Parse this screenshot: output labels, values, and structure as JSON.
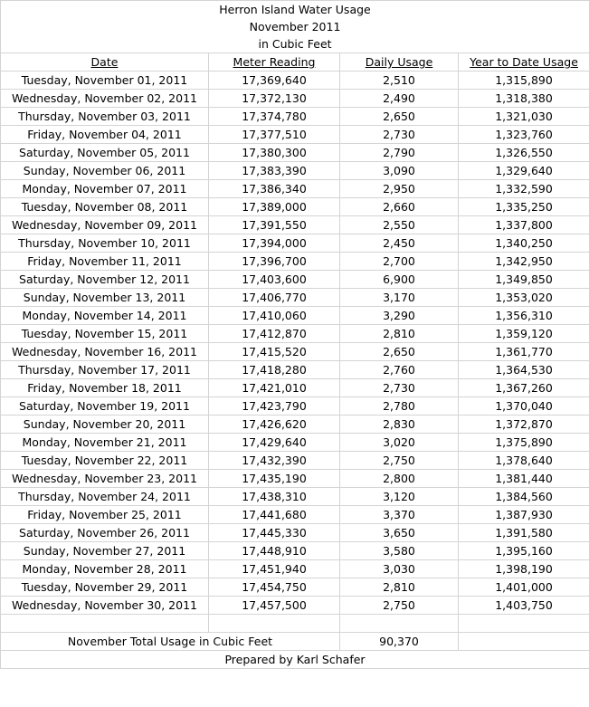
{
  "title": {
    "line1": "Herron Island Water Usage",
    "line2": "November 2011",
    "line3": "in Cubic Feet"
  },
  "headers": {
    "date": "Date",
    "meter": "Meter Reading",
    "daily": "Daily Usage",
    "ytd": "Year to Date Usage"
  },
  "rows": [
    {
      "date": "Tuesday, November 01, 2011",
      "meter": "17,369,640",
      "daily": "2,510",
      "ytd": "1,315,890"
    },
    {
      "date": "Wednesday, November 02, 2011",
      "meter": "17,372,130",
      "daily": "2,490",
      "ytd": "1,318,380"
    },
    {
      "date": "Thursday, November 03, 2011",
      "meter": "17,374,780",
      "daily": "2,650",
      "ytd": "1,321,030"
    },
    {
      "date": "Friday, November 04, 2011",
      "meter": "17,377,510",
      "daily": "2,730",
      "ytd": "1,323,760"
    },
    {
      "date": "Saturday, November 05, 2011",
      "meter": "17,380,300",
      "daily": "2,790",
      "ytd": "1,326,550"
    },
    {
      "date": "Sunday, November 06, 2011",
      "meter": "17,383,390",
      "daily": "3,090",
      "ytd": "1,329,640"
    },
    {
      "date": "Monday, November 07, 2011",
      "meter": "17,386,340",
      "daily": "2,950",
      "ytd": "1,332,590"
    },
    {
      "date": "Tuesday, November 08, 2011",
      "meter": "17,389,000",
      "daily": "2,660",
      "ytd": "1,335,250"
    },
    {
      "date": "Wednesday, November 09, 2011",
      "meter": "17,391,550",
      "daily": "2,550",
      "ytd": "1,337,800"
    },
    {
      "date": "Thursday, November 10, 2011",
      "meter": "17,394,000",
      "daily": "2,450",
      "ytd": "1,340,250"
    },
    {
      "date": "Friday, November 11, 2011",
      "meter": "17,396,700",
      "daily": "2,700",
      "ytd": "1,342,950"
    },
    {
      "date": "Saturday, November 12, 2011",
      "meter": "17,403,600",
      "daily": "6,900",
      "ytd": "1,349,850"
    },
    {
      "date": "Sunday, November 13, 2011",
      "meter": "17,406,770",
      "daily": "3,170",
      "ytd": "1,353,020"
    },
    {
      "date": "Monday, November 14, 2011",
      "meter": "17,410,060",
      "daily": "3,290",
      "ytd": "1,356,310"
    },
    {
      "date": "Tuesday, November 15, 2011",
      "meter": "17,412,870",
      "daily": "2,810",
      "ytd": "1,359,120"
    },
    {
      "date": "Wednesday, November 16, 2011",
      "meter": "17,415,520",
      "daily": "2,650",
      "ytd": "1,361,770"
    },
    {
      "date": "Thursday, November 17, 2011",
      "meter": "17,418,280",
      "daily": "2,760",
      "ytd": "1,364,530"
    },
    {
      "date": "Friday, November 18, 2011",
      "meter": "17,421,010",
      "daily": "2,730",
      "ytd": "1,367,260"
    },
    {
      "date": "Saturday, November 19, 2011",
      "meter": "17,423,790",
      "daily": "2,780",
      "ytd": "1,370,040"
    },
    {
      "date": "Sunday, November 20, 2011",
      "meter": "17,426,620",
      "daily": "2,830",
      "ytd": "1,372,870"
    },
    {
      "date": "Monday, November 21, 2011",
      "meter": "17,429,640",
      "daily": "3,020",
      "ytd": "1,375,890"
    },
    {
      "date": "Tuesday, November 22, 2011",
      "meter": "17,432,390",
      "daily": "2,750",
      "ytd": "1,378,640"
    },
    {
      "date": "Wednesday, November 23, 2011",
      "meter": "17,435,190",
      "daily": "2,800",
      "ytd": "1,381,440"
    },
    {
      "date": "Thursday, November 24, 2011",
      "meter": "17,438,310",
      "daily": "3,120",
      "ytd": "1,384,560"
    },
    {
      "date": "Friday, November 25, 2011",
      "meter": "17,441,680",
      "daily": "3,370",
      "ytd": "1,387,930"
    },
    {
      "date": "Saturday, November 26, 2011",
      "meter": "17,445,330",
      "daily": "3,650",
      "ytd": "1,391,580"
    },
    {
      "date": "Sunday, November 27, 2011",
      "meter": "17,448,910",
      "daily": "3,580",
      "ytd": "1,395,160"
    },
    {
      "date": "Monday, November 28, 2011",
      "meter": "17,451,940",
      "daily": "3,030",
      "ytd": "1,398,190"
    },
    {
      "date": "Tuesday, November 29, 2011",
      "meter": "17,454,750",
      "daily": "2,810",
      "ytd": "1,401,000"
    },
    {
      "date": "Wednesday, November 30, 2011",
      "meter": "17,457,500",
      "daily": "2,750",
      "ytd": "1,403,750"
    }
  ],
  "total": {
    "label": "November Total Usage in Cubic Feet",
    "value": "90,370"
  },
  "footer": {
    "prepared_by": "Prepared by Karl Schafer"
  },
  "colors": {
    "gridline": "#d4d4d4",
    "text": "#000000",
    "background": "#ffffff"
  }
}
